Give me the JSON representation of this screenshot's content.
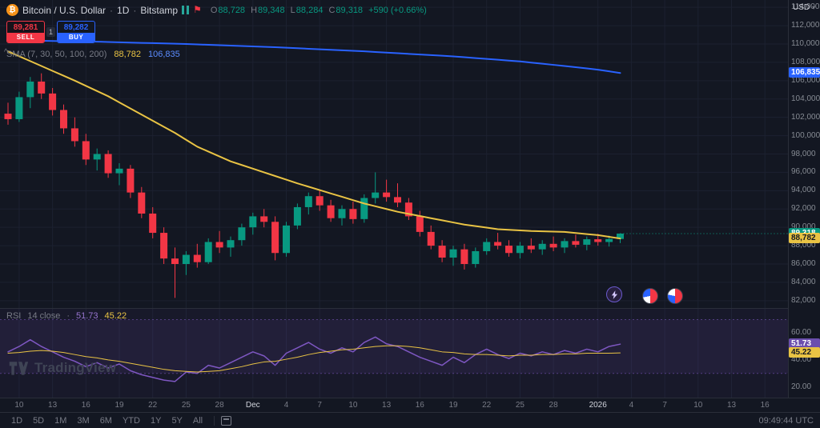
{
  "header": {
    "symbol_title": "Bitcoin / U.S. Dollar",
    "dot": "·",
    "interval": "1D",
    "exchange": "Bitstamp",
    "ohlc": {
      "o_label": "O",
      "o": "88,728",
      "h_label": "H",
      "h": "89,348",
      "l_label": "L",
      "l": "88,284",
      "c_label": "C",
      "c": "89,318",
      "change": "+590 (+0.66%)"
    },
    "sell": {
      "price": "89,281",
      "label": "SELL"
    },
    "spread": "1",
    "buy": {
      "price": "89,282",
      "label": "BUY"
    },
    "indicator": {
      "name": "SMA (7, 30, 50, 100, 200)",
      "v1": "88,782",
      "v2": "106,835"
    },
    "bitcoin_glyph": "₿",
    "flag_glyph": "⚑",
    "collapse_glyph": "^"
  },
  "axis": {
    "currency": "USD",
    "caret": "▾"
  },
  "rsi_legend": {
    "name": "RSI",
    "params": "14 close",
    "dot": "·",
    "v1": "51.73",
    "v2": "45.22"
  },
  "watermark": {
    "text": "TradingView"
  },
  "toolbar": {
    "ranges": [
      "1D",
      "5D",
      "1M",
      "3M",
      "6M",
      "YTD",
      "1Y",
      "5Y",
      "All"
    ],
    "clock": "09:49:44 UTC"
  },
  "chart_data": {
    "type": "candlestick",
    "title": "Bitcoin / U.S. Dollar · 1D · Bitstamp",
    "price_range": [
      81200,
      114800
    ],
    "price_ticks": [
      114000,
      112000,
      110000,
      108000,
      106000,
      104000,
      102000,
      100000,
      98000,
      96000,
      94000,
      92000,
      90000,
      88000,
      86000,
      84000,
      82000
    ],
    "last_close": 89318,
    "candles_ohlc": [
      [
        102400,
        103600,
        101200,
        101800
      ],
      [
        101800,
        104800,
        101500,
        104200
      ],
      [
        104200,
        106400,
        103000,
        105900
      ],
      [
        105900,
        106800,
        104000,
        104600
      ],
      [
        104600,
        105200,
        102200,
        102800
      ],
      [
        102800,
        103400,
        100200,
        100800
      ],
      [
        100800,
        102000,
        98800,
        99400
      ],
      [
        99400,
        100200,
        96800,
        97400
      ],
      [
        97400,
        98600,
        96200,
        98000
      ],
      [
        98000,
        98400,
        95400,
        95900
      ],
      [
        95900,
        97000,
        94600,
        96400
      ],
      [
        96400,
        96800,
        93200,
        93800
      ],
      [
        93800,
        94400,
        91000,
        91500
      ],
      [
        91500,
        92200,
        88800,
        89400
      ],
      [
        89400,
        90000,
        86000,
        86600
      ],
      [
        86600,
        87800,
        82300,
        86000
      ],
      [
        86000,
        87400,
        84800,
        87000
      ],
      [
        87000,
        88200,
        85600,
        86200
      ],
      [
        86200,
        88800,
        86000,
        88400
      ],
      [
        88400,
        89600,
        87200,
        87800
      ],
      [
        87800,
        89000,
        86800,
        88600
      ],
      [
        88600,
        90400,
        88000,
        90000
      ],
      [
        90000,
        91600,
        89200,
        91200
      ],
      [
        91200,
        92000,
        90000,
        90600
      ],
      [
        90600,
        91200,
        86400,
        87200
      ],
      [
        87200,
        90600,
        86800,
        90200
      ],
      [
        90200,
        92600,
        89800,
        92200
      ],
      [
        92200,
        93800,
        91400,
        93400
      ],
      [
        93400,
        94000,
        91800,
        92400
      ],
      [
        92400,
        93000,
        90600,
        91000
      ],
      [
        91000,
        92400,
        90200,
        92000
      ],
      [
        92000,
        92800,
        90400,
        90900
      ],
      [
        90900,
        93600,
        90500,
        93200
      ],
      [
        93200,
        96000,
        92600,
        93800
      ],
      [
        93800,
        95200,
        92800,
        93300
      ],
      [
        93300,
        94800,
        92200,
        92700
      ],
      [
        92700,
        93200,
        90800,
        91200
      ],
      [
        91200,
        91800,
        89000,
        89500
      ],
      [
        89500,
        90200,
        87600,
        88000
      ],
      [
        88000,
        88600,
        86200,
        86700
      ],
      [
        86700,
        88000,
        85800,
        87600
      ],
      [
        87600,
        88200,
        85400,
        86000
      ],
      [
        86000,
        87800,
        85600,
        87400
      ],
      [
        87400,
        88800,
        87000,
        88400
      ],
      [
        88400,
        89400,
        87600,
        88000
      ],
      [
        88000,
        88600,
        86800,
        87200
      ],
      [
        87200,
        88400,
        86600,
        88000
      ],
      [
        88000,
        88800,
        87200,
        87600
      ],
      [
        87600,
        88600,
        87000,
        88200
      ],
      [
        88200,
        89000,
        87400,
        87800
      ],
      [
        87800,
        88800,
        87200,
        88500
      ],
      [
        88500,
        89200,
        87800,
        88100
      ],
      [
        88100,
        89000,
        87500,
        88700
      ],
      [
        88700,
        89300,
        88000,
        88400
      ],
      [
        88400,
        89100,
        87900,
        88728
      ],
      [
        88728,
        89348,
        88284,
        89318
      ]
    ],
    "sma_blue_points": [
      [
        0,
        110400
      ],
      [
        8,
        110250
      ],
      [
        16,
        110000
      ],
      [
        24,
        109650
      ],
      [
        32,
        109200
      ],
      [
        40,
        108650
      ],
      [
        46,
        108100
      ],
      [
        50,
        107600
      ],
      [
        53,
        107200
      ],
      [
        55,
        106835
      ]
    ],
    "sma_yellow_points": [
      [
        0,
        109200
      ],
      [
        3,
        107600
      ],
      [
        6,
        106000
      ],
      [
        9,
        104300
      ],
      [
        12,
        102300
      ],
      [
        15,
        100300
      ],
      [
        17,
        98800
      ],
      [
        20,
        97200
      ],
      [
        23,
        96000
      ],
      [
        26,
        94800
      ],
      [
        29,
        93700
      ],
      [
        32,
        92600
      ],
      [
        35,
        91700
      ],
      [
        38,
        91000
      ],
      [
        41,
        90300
      ],
      [
        44,
        89800
      ],
      [
        47,
        89600
      ],
      [
        50,
        89500
      ],
      [
        53,
        89150
      ],
      [
        55,
        88782
      ]
    ],
    "rsi": {
      "range": [
        12,
        78
      ],
      "ticks": [
        60,
        40,
        20
      ],
      "upper": 70,
      "lower": 30,
      "last": 51.73,
      "smooth_last": 45.22,
      "values": [
        46,
        50,
        55,
        50,
        46,
        42,
        39,
        35,
        38,
        34,
        37,
        32,
        29,
        27,
        25,
        24,
        31,
        30,
        36,
        34,
        38,
        42,
        46,
        43,
        36,
        45,
        49,
        53,
        48,
        45,
        49,
        46,
        53,
        57,
        52,
        50,
        46,
        42,
        39,
        36,
        42,
        38,
        44,
        48,
        44,
        41,
        45,
        43,
        46,
        44,
        47,
        45,
        48,
        46,
        50,
        51.73
      ],
      "smooth": [
        45,
        45.5,
        46.5,
        47,
        46.5,
        45.5,
        44,
        42.5,
        41.5,
        40,
        39,
        37.5,
        36,
        34.5,
        33,
        32,
        31.5,
        31,
        31.5,
        32,
        33.5,
        35,
        37,
        38.5,
        39,
        40.5,
        42,
        44,
        45.5,
        46.5,
        47.5,
        48,
        49,
        50,
        50.5,
        50.5,
        50,
        49,
        47.5,
        46,
        45.5,
        44.5,
        44,
        44,
        43.5,
        43,
        43.5,
        43.5,
        44,
        44,
        44.5,
        44.5,
        45,
        45,
        45,
        45.22
      ]
    },
    "time_labels": [
      {
        "t": "10",
        "i": 1
      },
      {
        "t": "13",
        "i": 4
      },
      {
        "t": "16",
        "i": 7
      },
      {
        "t": "19",
        "i": 10
      },
      {
        "t": "22",
        "i": 13
      },
      {
        "t": "25",
        "i": 16
      },
      {
        "t": "28",
        "i": 19
      },
      {
        "t": "Dec",
        "i": 22,
        "bright": true
      },
      {
        "t": "4",
        "i": 25
      },
      {
        "t": "7",
        "i": 28
      },
      {
        "t": "10",
        "i": 31
      },
      {
        "t": "13",
        "i": 34
      },
      {
        "t": "16",
        "i": 37
      },
      {
        "t": "19",
        "i": 40
      },
      {
        "t": "22",
        "i": 43
      },
      {
        "t": "25",
        "i": 46
      },
      {
        "t": "28",
        "i": 49
      },
      {
        "t": "2026",
        "i": 53,
        "bright": true
      },
      {
        "t": "4",
        "i": 56
      },
      {
        "t": "7",
        "i": 59
      },
      {
        "t": "10",
        "i": 62
      },
      {
        "t": "13",
        "i": 65
      },
      {
        "t": "16",
        "i": 68
      }
    ],
    "axis_labels": [
      {
        "text": "106,835",
        "bg": "#2962ff",
        "fg": "#ffffff",
        "pane": "main",
        "value": 106835
      },
      {
        "text": "89,318",
        "bg": "#089981",
        "fg": "#ffffff",
        "pane": "main",
        "value": 89318
      },
      {
        "text": "88,782",
        "bg": "#e9c344",
        "fg": "#131722",
        "pane": "main",
        "value": 88782
      },
      {
        "text": "51.73",
        "bg": "#6b4fae",
        "fg": "#ffffff",
        "pane": "rsi",
        "value": 51.73
      },
      {
        "text": "45.22",
        "bg": "#e9c344",
        "fg": "#131722",
        "pane": "rsi",
        "value": 45.22
      }
    ],
    "colors": {
      "up": "#089981",
      "down": "#f23645",
      "blue": "#2962ff",
      "yellow": "#e9c344",
      "purple": "#7e57c2",
      "grid": "#1c2130",
      "rsi_band_line": "rgba(126,87,194,0.55)",
      "rsi_band_fill": "rgba(126,87,194,0.10)",
      "rsi_pane_tint": "rgba(126,87,194,0.05)",
      "axis_text": "#868b93"
    }
  }
}
